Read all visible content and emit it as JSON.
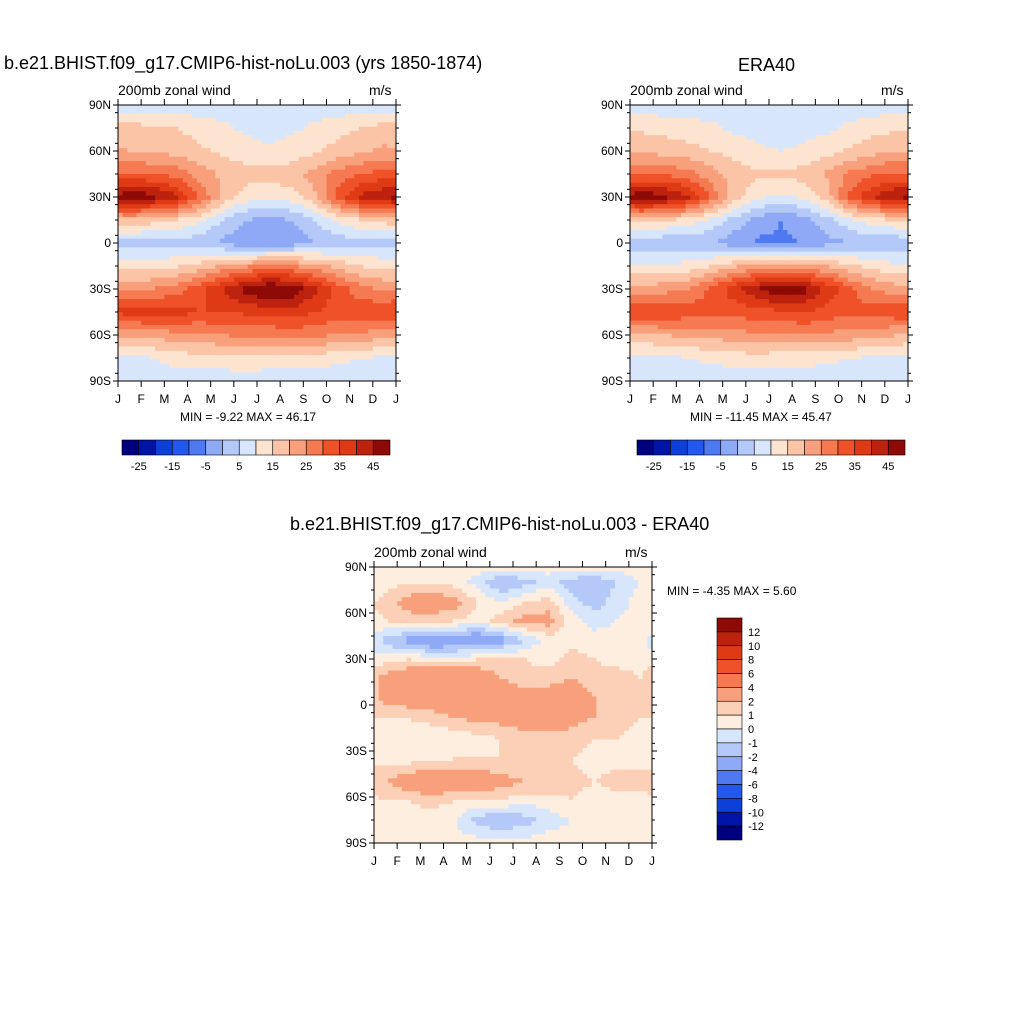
{
  "panels": [
    {
      "id": "model",
      "title": "b.e21.BHIST.f09_g17.CMIP6-hist-noLu.003 (yrs 1850-1874)",
      "left_label": "200mb zonal wind",
      "right_label": "m/s",
      "minmax_text": "MIN =  -9.22 MAX =  46.17",
      "colorbar_labels": [
        "-25",
        "-15",
        "-5",
        "5",
        "15",
        "25",
        "35",
        "45"
      ]
    },
    {
      "id": "obs",
      "title": "ERA40",
      "left_label": "200mb zonal wind",
      "right_label": "m/s",
      "minmax_text": "MIN = -11.45 MAX =  45.47",
      "colorbar_labels": [
        "-25",
        "-15",
        "-5",
        "5",
        "15",
        "25",
        "35",
        "45"
      ]
    },
    {
      "id": "diff",
      "title": "b.e21.BHIST.f09_g17.CMIP6-hist-noLu.003 - ERA40",
      "left_label": "200mb zonal wind",
      "right_label": "m/s",
      "minmax_text": "MIN =  -4.35 MAX =   5.60",
      "colorbar_labels": [
        "12",
        "10",
        "8",
        "6",
        "4",
        "2",
        "1",
        "0",
        "-1",
        "-2",
        "-4",
        "-6",
        "-8",
        "-10",
        "-12"
      ]
    }
  ],
  "chart_data": [
    {
      "type": "heatmap",
      "title": "b.e21.BHIST.f09_g17.CMIP6-hist-noLu.003 (yrs 1850-1874)",
      "xlabel": "",
      "ylabel": "",
      "x_ticks": [
        "J",
        "F",
        "M",
        "A",
        "M",
        "J",
        "J",
        "A",
        "S",
        "O",
        "N",
        "D",
        "J"
      ],
      "y_ticks": [
        "90N",
        "60N",
        "30N",
        "0",
        "30S",
        "60S",
        "90S"
      ],
      "units": "m/s",
      "min": -9.22,
      "max": 46.17,
      "colorbar_levels": [
        -30,
        -25,
        -20,
        -15,
        -10,
        -5,
        0,
        5,
        10,
        15,
        20,
        25,
        30,
        35,
        40,
        45
      ],
      "colors": [
        "#00007f",
        "#0015a6",
        "#0d3fd9",
        "#2357ed",
        "#4f79f0",
        "#8ea9f5",
        "#b4c9f7",
        "#d8e6fb",
        "#fde4d1",
        "#fbc4a6",
        "#f8a07c",
        "#f57a52",
        "#ef5228",
        "#de3a15",
        "#bd220e",
        "#8d0a06"
      ],
      "rows": [
        {
          "lat": 90,
          "values": [
            2,
            2,
            2,
            2,
            2,
            2,
            2,
            2,
            2,
            2,
            2,
            2
          ]
        },
        {
          "lat": 75,
          "values": [
            12,
            11,
            10,
            8,
            6,
            4,
            3,
            4,
            6,
            8,
            10,
            12
          ]
        },
        {
          "lat": 60,
          "values": [
            15,
            14,
            13,
            11,
            9,
            7,
            6,
            7,
            9,
            12,
            14,
            16
          ]
        },
        {
          "lat": 45,
          "values": [
            25,
            25,
            23,
            18,
            14,
            12,
            12,
            13,
            17,
            22,
            25,
            27
          ]
        },
        {
          "lat": 30,
          "values": [
            44,
            42,
            36,
            25,
            14,
            8,
            6,
            8,
            14,
            28,
            36,
            40
          ]
        },
        {
          "lat": 15,
          "values": [
            14,
            12,
            10,
            6,
            0,
            -5,
            -7,
            -5,
            0,
            6,
            10,
            12
          ]
        },
        {
          "lat": 0,
          "values": [
            -2,
            -2,
            -2,
            -3,
            -6,
            -9,
            -9,
            -8,
            -5,
            -3,
            -2,
            -2
          ]
        },
        {
          "lat": -15,
          "values": [
            8,
            8,
            9,
            12,
            16,
            19,
            21,
            20,
            17,
            13,
            10,
            8
          ]
        },
        {
          "lat": -30,
          "values": [
            18,
            20,
            22,
            28,
            35,
            42,
            46,
            44,
            36,
            28,
            22,
            19
          ]
        },
        {
          "lat": -45,
          "values": [
            32,
            33,
            32,
            30,
            30,
            31,
            32,
            33,
            30,
            28,
            28,
            30
          ]
        },
        {
          "lat": -60,
          "values": [
            16,
            17,
            18,
            19,
            20,
            21,
            21,
            22,
            21,
            20,
            19,
            17
          ]
        },
        {
          "lat": -75,
          "values": [
            3,
            5,
            7,
            8,
            8,
            9,
            8,
            8,
            8,
            6,
            5,
            4
          ]
        },
        {
          "lat": -90,
          "values": [
            2,
            2,
            2,
            2,
            2,
            2,
            2,
            2,
            2,
            2,
            2,
            2
          ]
        }
      ]
    },
    {
      "type": "heatmap",
      "title": "ERA40",
      "xlabel": "",
      "ylabel": "",
      "x_ticks": [
        "J",
        "F",
        "M",
        "A",
        "M",
        "J",
        "J",
        "A",
        "S",
        "O",
        "N",
        "D",
        "J"
      ],
      "y_ticks": [
        "90N",
        "60N",
        "30N",
        "0",
        "30S",
        "60S",
        "90S"
      ],
      "units": "m/s",
      "min": -11.45,
      "max": 45.47,
      "colorbar_levels": [
        -30,
        -25,
        -20,
        -15,
        -10,
        -5,
        0,
        5,
        10,
        15,
        20,
        25,
        30,
        35,
        40,
        45
      ],
      "colors": [
        "#00007f",
        "#0015a6",
        "#0d3fd9",
        "#2357ed",
        "#4f79f0",
        "#8ea9f5",
        "#b4c9f7",
        "#d8e6fb",
        "#fde4d1",
        "#fbc4a6",
        "#f8a07c",
        "#f57a52",
        "#ef5228",
        "#de3a15",
        "#bd220e",
        "#8d0a06"
      ],
      "rows": [
        {
          "lat": 90,
          "values": [
            2,
            2,
            2,
            2,
            2,
            2,
            2,
            2,
            2,
            2,
            2,
            2
          ]
        },
        {
          "lat": 75,
          "values": [
            9,
            8,
            7,
            6,
            4,
            3,
            2,
            3,
            4,
            6,
            8,
            9
          ]
        },
        {
          "lat": 60,
          "values": [
            14,
            13,
            12,
            10,
            8,
            6,
            5,
            6,
            8,
            11,
            13,
            15
          ]
        },
        {
          "lat": 45,
          "values": [
            24,
            24,
            22,
            17,
            13,
            11,
            11,
            12,
            16,
            21,
            24,
            26
          ]
        },
        {
          "lat": 30,
          "values": [
            44,
            42,
            36,
            24,
            13,
            6,
            4,
            6,
            12,
            27,
            35,
            40
          ]
        },
        {
          "lat": 15,
          "values": [
            12,
            10,
            8,
            4,
            -2,
            -7,
            -10,
            -7,
            -2,
            4,
            8,
            10
          ]
        },
        {
          "lat": 0,
          "values": [
            -4,
            -4,
            -4,
            -5,
            -8,
            -11,
            -11,
            -10,
            -7,
            -5,
            -4,
            -4
          ]
        },
        {
          "lat": -15,
          "values": [
            6,
            6,
            7,
            10,
            14,
            17,
            19,
            18,
            15,
            11,
            8,
            6
          ]
        },
        {
          "lat": -30,
          "values": [
            16,
            18,
            20,
            26,
            33,
            40,
            44,
            42,
            34,
            26,
            20,
            17
          ]
        },
        {
          "lat": -45,
          "values": [
            30,
            30,
            28,
            27,
            27,
            28,
            29,
            30,
            28,
            26,
            27,
            29
          ]
        },
        {
          "lat": -60,
          "values": [
            14,
            15,
            16,
            17,
            18,
            19,
            19,
            20,
            19,
            18,
            17,
            15
          ]
        },
        {
          "lat": -75,
          "values": [
            3,
            4,
            5,
            6,
            7,
            8,
            7,
            7,
            6,
            5,
            4,
            3
          ]
        },
        {
          "lat": -90,
          "values": [
            2,
            2,
            2,
            2,
            2,
            2,
            2,
            2,
            2,
            2,
            2,
            2
          ]
        }
      ]
    },
    {
      "type": "heatmap",
      "title": "b.e21.BHIST.f09_g17.CMIP6-hist-noLu.003 - ERA40",
      "xlabel": "",
      "ylabel": "",
      "x_ticks": [
        "J",
        "F",
        "M",
        "A",
        "M",
        "J",
        "J",
        "A",
        "S",
        "O",
        "N",
        "D",
        "J"
      ],
      "y_ticks": [
        "90N",
        "60N",
        "30N",
        "0",
        "30S",
        "60S",
        "90S"
      ],
      "units": "m/s",
      "min": -4.35,
      "max": 5.6,
      "colorbar_levels": [
        -12,
        -10,
        -8,
        -6,
        -4,
        -2,
        -1,
        0,
        1,
        2,
        4,
        6,
        8,
        10,
        12
      ],
      "colors": [
        "#00007f",
        "#0015a6",
        "#0d3fd9",
        "#2357ed",
        "#4f79f0",
        "#8ea9f5",
        "#b4c9f7",
        "#d8e6fb",
        "#fdeee0",
        "#fbd0b6",
        "#f8a07c",
        "#f57a52",
        "#ef5228",
        "#de3a15",
        "#bd220e",
        "#8d0a06"
      ],
      "rows": [
        {
          "lat": 90,
          "values": [
            0.5,
            0.5,
            0.5,
            0.5,
            0.5,
            0.5,
            0.5,
            0.5,
            0.5,
            0.5,
            0.5,
            0.5
          ]
        },
        {
          "lat": 80,
          "values": [
            0.5,
            1,
            1,
            0.5,
            -0.5,
            -2,
            -1.5,
            -0.5,
            -1.5,
            -2,
            -1,
            0
          ]
        },
        {
          "lat": 67,
          "values": [
            1.5,
            2.5,
            3,
            2.5,
            1,
            0,
            1,
            1.5,
            -0.5,
            -1.5,
            -0.5,
            0.5
          ]
        },
        {
          "lat": 55,
          "values": [
            1,
            1.5,
            1.5,
            1,
            0.5,
            1.5,
            2.5,
            2.5,
            0.5,
            -0.5,
            0,
            0.5
          ]
        },
        {
          "lat": 42,
          "values": [
            -1.5,
            -2.5,
            -3.5,
            -3,
            -3.5,
            -2.5,
            -1,
            0.5,
            0.5,
            0.5,
            0.5,
            0.5
          ]
        },
        {
          "lat": 30,
          "values": [
            0.5,
            1,
            0.5,
            0.5,
            1,
            1.5,
            1,
            0.5,
            1.5,
            1,
            0.5,
            0.5
          ]
        },
        {
          "lat": 18,
          "values": [
            2.5,
            3,
            3.5,
            3.5,
            3,
            2,
            1.5,
            1.5,
            2,
            1.5,
            1.5,
            1
          ]
        },
        {
          "lat": 5,
          "values": [
            2.5,
            3,
            3,
            3.5,
            3,
            2.5,
            2.5,
            2.5,
            3,
            2,
            1.5,
            1
          ]
        },
        {
          "lat": -8,
          "values": [
            1,
            1,
            1.5,
            2,
            2.5,
            2.5,
            3,
            3,
            2.5,
            2,
            1.5,
            1
          ]
        },
        {
          "lat": -22,
          "values": [
            0.5,
            0.5,
            0,
            0.5,
            0.5,
            1,
            1.5,
            1.5,
            1.5,
            1,
            1,
            0.5
          ]
        },
        {
          "lat": -35,
          "values": [
            0.5,
            0.5,
            0.5,
            1,
            1,
            1,
            1,
            1,
            1,
            0.5,
            0.5,
            0.5
          ]
        },
        {
          "lat": -50,
          "values": [
            2,
            3,
            3.5,
            3,
            3,
            2.5,
            2,
            2,
            1.5,
            1,
            1.5,
            1.5
          ]
        },
        {
          "lat": -62,
          "values": [
            1,
            1,
            1.5,
            1,
            1,
            1,
            0.5,
            0.5,
            1,
            0.5,
            0.5,
            0.5
          ]
        },
        {
          "lat": -75,
          "values": [
            0.5,
            0.5,
            0.5,
            0,
            -1.5,
            -2,
            -1.5,
            -0.5,
            0,
            0,
            0.5,
            0.5
          ]
        },
        {
          "lat": -90,
          "values": [
            0.5,
            0.5,
            0.5,
            0.5,
            0.5,
            0.5,
            0.5,
            0.5,
            0.5,
            0.5,
            0.5,
            0.5
          ]
        }
      ]
    }
  ]
}
